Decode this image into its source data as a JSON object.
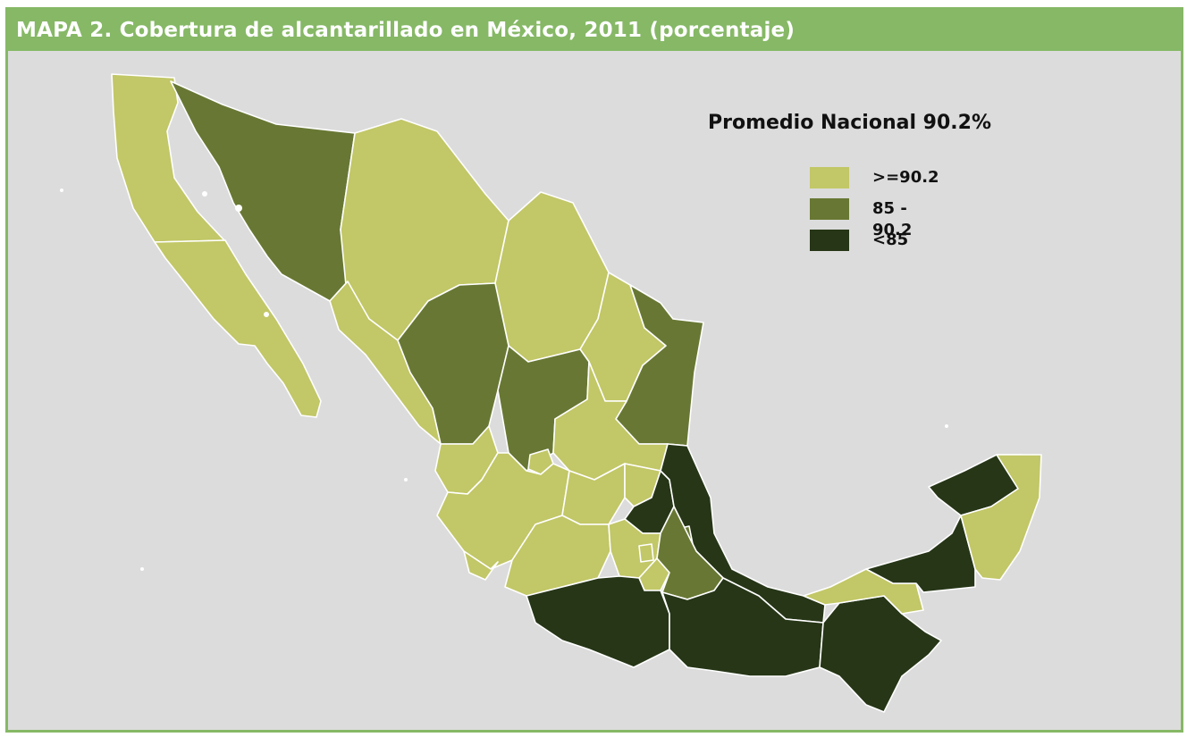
{
  "title": "MAPA 2. Cobertura de alcantarillado en México, 2011 (porcentaje)",
  "legend": {
    "title": "Promedio Nacional 90.2%",
    "items": [
      {
        "label": ">=90.2",
        "color": "#c2c767"
      },
      {
        "label": "85 - 90.2",
        "color": "#687834"
      },
      {
        "label": "<85",
        "color": "#263617"
      }
    ]
  },
  "colors": {
    "frame": "#86b866",
    "background": "#dcdcdc",
    "land_high": "#c2c767",
    "land_mid": "#687834",
    "land_low": "#263617"
  },
  "regions": [
    {
      "name": "Baja California",
      "class": "high"
    },
    {
      "name": "Baja California Sur",
      "class": "high"
    },
    {
      "name": "Sonora",
      "class": "mid"
    },
    {
      "name": "Chihuahua",
      "class": "high"
    },
    {
      "name": "Coahuila",
      "class": "high"
    },
    {
      "name": "Nuevo León",
      "class": "high"
    },
    {
      "name": "Tamaulipas",
      "class": "mid"
    },
    {
      "name": "Sinaloa",
      "class": "high"
    },
    {
      "name": "Durango",
      "class": "mid"
    },
    {
      "name": "Zacatecas",
      "class": "mid"
    },
    {
      "name": "San Luis Potosí",
      "class": "high"
    },
    {
      "name": "Nayarit",
      "class": "high"
    },
    {
      "name": "Aguascalientes",
      "class": "high"
    },
    {
      "name": "Jalisco",
      "class": "high"
    },
    {
      "name": "Guanajuato",
      "class": "high"
    },
    {
      "name": "Querétaro",
      "class": "high"
    },
    {
      "name": "Hidalgo",
      "class": "low"
    },
    {
      "name": "Veracruz",
      "class": "low"
    },
    {
      "name": "Colima",
      "class": "high"
    },
    {
      "name": "Michoacán",
      "class": "mid"
    },
    {
      "name": "Estado de México",
      "class": "high"
    },
    {
      "name": "Ciudad de México",
      "class": "high"
    },
    {
      "name": "Morelos",
      "class": "high"
    },
    {
      "name": "Tlaxcala",
      "class": "mid"
    },
    {
      "name": "Puebla",
      "class": "mid"
    },
    {
      "name": "Guerrero",
      "class": "low"
    },
    {
      "name": "Oaxaca",
      "class": "low"
    },
    {
      "name": "Chiapas",
      "class": "low"
    },
    {
      "name": "Tabasco",
      "class": "high"
    },
    {
      "name": "Campeche",
      "class": "low"
    },
    {
      "name": "Yucatán",
      "class": "low"
    },
    {
      "name": "Quintana Roo",
      "class": "high"
    }
  ]
}
